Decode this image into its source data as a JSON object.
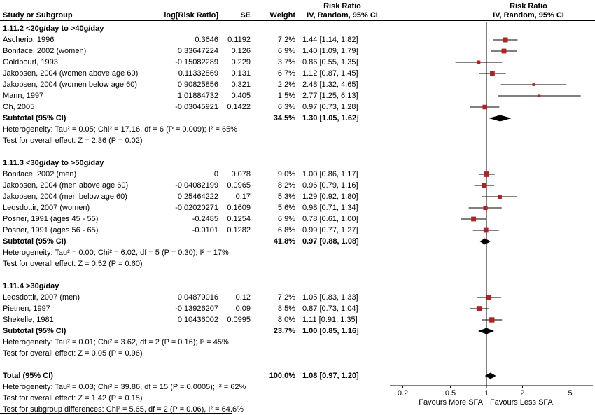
{
  "header": {
    "risk_ratio": "Risk Ratio",
    "study": "Study or Subgroup",
    "log_rr": "log[Risk Ratio]",
    "se": "SE",
    "weight": "Weight",
    "method": "IV, Random, 95% CI"
  },
  "chart_data": {
    "type": "forest",
    "effect_measure": "Risk Ratio",
    "model": "IV, Random, 95% CI",
    "scale": "log",
    "axis_ticks": [
      0.2,
      0.5,
      1,
      2,
      5
    ],
    "axis_label_left": "Favours More SFA",
    "axis_label_right": "Favours Less SFA",
    "marker_color": "#B22222",
    "groups": [
      {
        "label": "1.11.2 <20g/day to >40g/day",
        "studies": [
          {
            "name": "Ascherio, 1996",
            "log": "0.3646",
            "se": "0.1192",
            "weight": "7.2%",
            "ci": "1.44 [1.14, 1.82]",
            "rr": 1.44,
            "lo": 1.14,
            "hi": 1.82,
            "w": 7.2
          },
          {
            "name": "Boniface, 2002 (women)",
            "log": "0.33647224",
            "se": "0.126",
            "weight": "6.9%",
            "ci": "1.40 [1.09, 1.79]",
            "rr": 1.4,
            "lo": 1.09,
            "hi": 1.79,
            "w": 6.9
          },
          {
            "name": "Goldbourt, 1993",
            "log": "-0.15082289",
            "se": "0.229",
            "weight": "3.7%",
            "ci": "0.86 [0.55, 1.35]",
            "rr": 0.86,
            "lo": 0.55,
            "hi": 1.35,
            "w": 3.7
          },
          {
            "name": "Jakobsen, 2004 (women above age 60)",
            "log": "0.11332869",
            "se": "0.131",
            "weight": "6.7%",
            "ci": "1.12 [0.87, 1.45]",
            "rr": 1.12,
            "lo": 0.87,
            "hi": 1.45,
            "w": 6.7
          },
          {
            "name": "Jakobsen, 2004 (women below age 60)",
            "log": "0.90825856",
            "se": "0.321",
            "weight": "2.2%",
            "ci": "2.48 [1.32, 4.65]",
            "rr": 2.48,
            "lo": 1.32,
            "hi": 4.65,
            "w": 2.2
          },
          {
            "name": "Mann, 1997",
            "log": "1.01884732",
            "se": "0.405",
            "weight": "1.5%",
            "ci": "2.77 [1.25, 6.13]",
            "rr": 2.77,
            "lo": 1.25,
            "hi": 6.13,
            "w": 1.5
          },
          {
            "name": "Oh, 2005",
            "log": "-0.03045921",
            "se": "0.1422",
            "weight": "6.3%",
            "ci": "0.97 [0.73, 1.28]",
            "rr": 0.97,
            "lo": 0.73,
            "hi": 1.28,
            "w": 6.3
          }
        ],
        "subtotal": {
          "label": "Subtotal (95% CI)",
          "weight": "34.5%",
          "ci": "1.30 [1.05, 1.62]",
          "rr": 1.3,
          "lo": 1.05,
          "hi": 1.62
        },
        "heterogeneity": "Heterogeneity: Tau² = 0.05; Chi² = 17.16, df = 6 (P = 0.009); I² = 65%",
        "overall_effect": "Test for overall effect: Z = 2.36 (P = 0.02)"
      },
      {
        "label": "1.11.3 <30g/day to >50g/day",
        "studies": [
          {
            "name": "Boniface, 2002 (men)",
            "log": "0",
            "se": "0.078",
            "weight": "9.0%",
            "ci": "1.00 [0.86, 1.17]",
            "rr": 1.0,
            "lo": 0.86,
            "hi": 1.17,
            "w": 9.0
          },
          {
            "name": "Jakobsen, 2004 (men above age 60)",
            "log": "-0.04082199",
            "se": "0.0965",
            "weight": "8.2%",
            "ci": "0.96 [0.79, 1.16]",
            "rr": 0.96,
            "lo": 0.79,
            "hi": 1.16,
            "w": 8.2
          },
          {
            "name": "Jakobsen, 2004 (men below age 60)",
            "log": "0.25464222",
            "se": "0.17",
            "weight": "5.3%",
            "ci": "1.29 [0.92, 1.80]",
            "rr": 1.29,
            "lo": 0.92,
            "hi": 1.8,
            "w": 5.3
          },
          {
            "name": "Leosdottir, 2007 (women)",
            "log": "-0.02020271",
            "se": "0.1609",
            "weight": "5.6%",
            "ci": "0.98 [0.71, 1.34]",
            "rr": 0.98,
            "lo": 0.71,
            "hi": 1.34,
            "w": 5.6
          },
          {
            "name": "Posner, 1991 (ages 45 - 55)",
            "log": "-0.2485",
            "se": "0.1254",
            "weight": "6.9%",
            "ci": "0.78 [0.61, 1.00]",
            "rr": 0.78,
            "lo": 0.61,
            "hi": 1.0,
            "w": 6.9
          },
          {
            "name": "Posner, 1991 (ages 56 - 65)",
            "log": "-0.0101",
            "se": "0.1282",
            "weight": "6.8%",
            "ci": "0.99 [0.77, 1.27]",
            "rr": 0.99,
            "lo": 0.77,
            "hi": 1.27,
            "w": 6.8
          }
        ],
        "subtotal": {
          "label": "Subtotal (95% CI)",
          "weight": "41.8%",
          "ci": "0.97 [0.88, 1.08]",
          "rr": 0.97,
          "lo": 0.88,
          "hi": 1.08
        },
        "heterogeneity": "Heterogeneity: Tau² = 0.00; Chi² = 6.02, df = 5 (P = 0.30); I² = 17%",
        "overall_effect": "Test for overall effect: Z = 0.52 (P = 0.60)"
      },
      {
        "label": "1.11.4 >30g/day",
        "studies": [
          {
            "name": "Leosdottir, 2007 (men)",
            "log": "0.04879016",
            "se": "0.12",
            "weight": "7.2%",
            "ci": "1.05 [0.83, 1.33]",
            "rr": 1.05,
            "lo": 0.83,
            "hi": 1.33,
            "w": 7.2
          },
          {
            "name": "Pietnen, 1997",
            "log": "-0.13926207",
            "se": "0.09",
            "weight": "8.5%",
            "ci": "0.87 [0.73, 1.04]",
            "rr": 0.87,
            "lo": 0.73,
            "hi": 1.04,
            "w": 8.5
          },
          {
            "name": "Shekelle, 1981",
            "log": "0.10436002",
            "se": "0.0995",
            "weight": "8.0%",
            "ci": "1.11 [0.91, 1.35]",
            "rr": 1.11,
            "lo": 0.91,
            "hi": 1.35,
            "w": 8.0
          }
        ],
        "subtotal": {
          "label": "Subtotal (95% CI)",
          "weight": "23.7%",
          "ci": "1.00 [0.85, 1.16]",
          "rr": 1.0,
          "lo": 0.85,
          "hi": 1.16
        },
        "heterogeneity": "Heterogeneity: Tau² = 0.01; Chi² = 3.62, df = 2 (P = 0.16); I² = 45%",
        "overall_effect": "Test for overall effect: Z = 0.05 (P = 0.96)"
      }
    ],
    "total": {
      "label": "Total (95% CI)",
      "weight": "100.0%",
      "ci": "1.08 [0.97, 1.20]",
      "rr": 1.08,
      "lo": 0.97,
      "hi": 1.2
    },
    "total_heterogeneity": "Heterogeneity: Tau² = 0.03; Chi² = 39.86, df = 15 (P = 0.0005); I² = 62%",
    "total_overall": "Test for overall effect: Z = 1.42 (P = 0.15)",
    "subgroup_differences": "Test for subgroup differences: Chi² = 5.65, df = 2 (P = 0.06), I² = 64.6%"
  }
}
